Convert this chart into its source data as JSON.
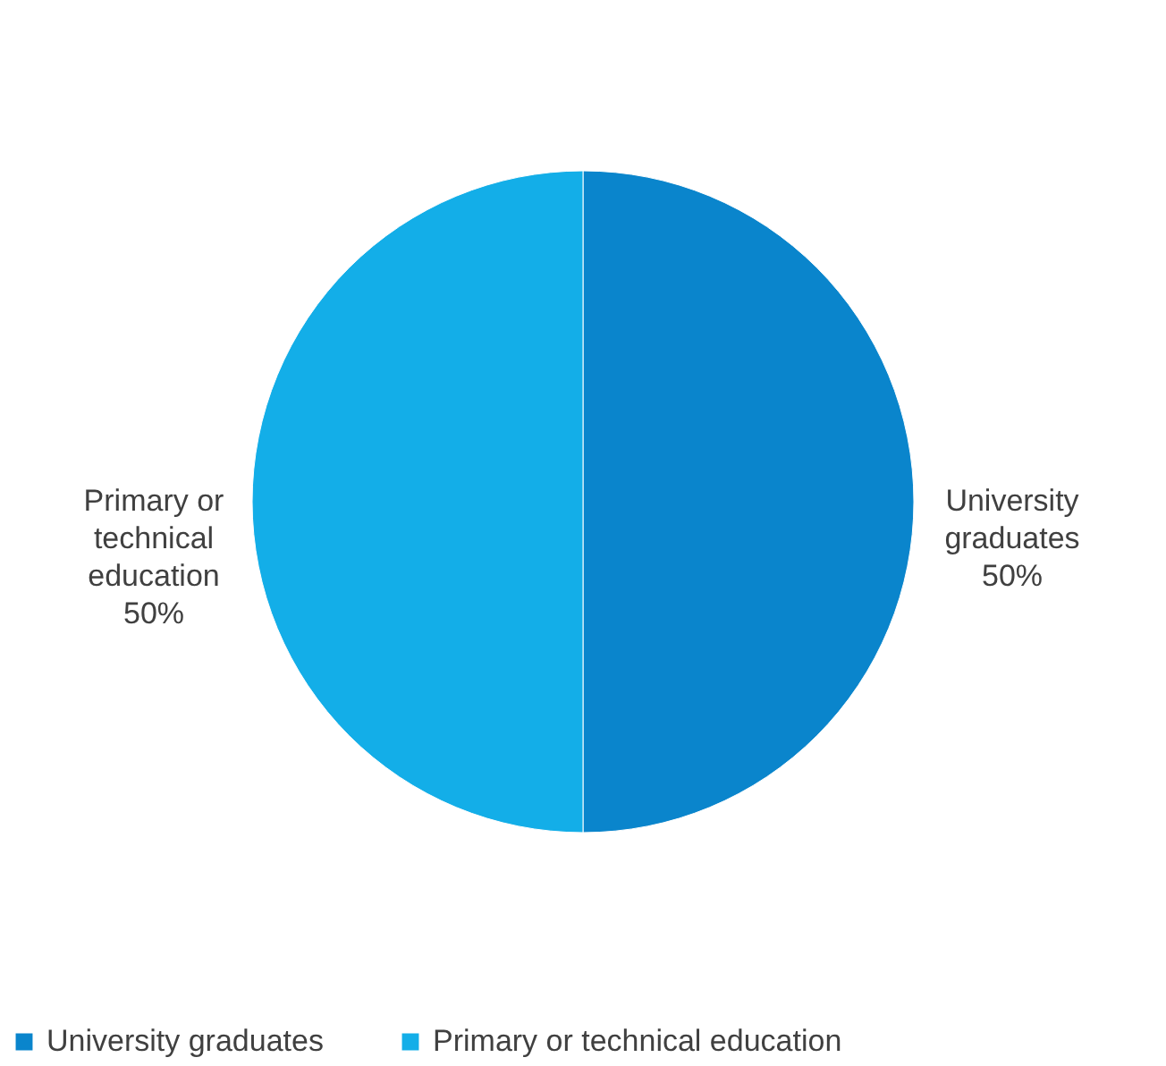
{
  "chart_data": {
    "type": "pie",
    "categories": [
      "University graduates",
      "Primary or technical education"
    ],
    "values": [
      50,
      50
    ],
    "colors": [
      "#0a85cc",
      "#13aee8"
    ],
    "value_labels": [
      "50%",
      "50%"
    ],
    "legend": "bottom"
  }
}
